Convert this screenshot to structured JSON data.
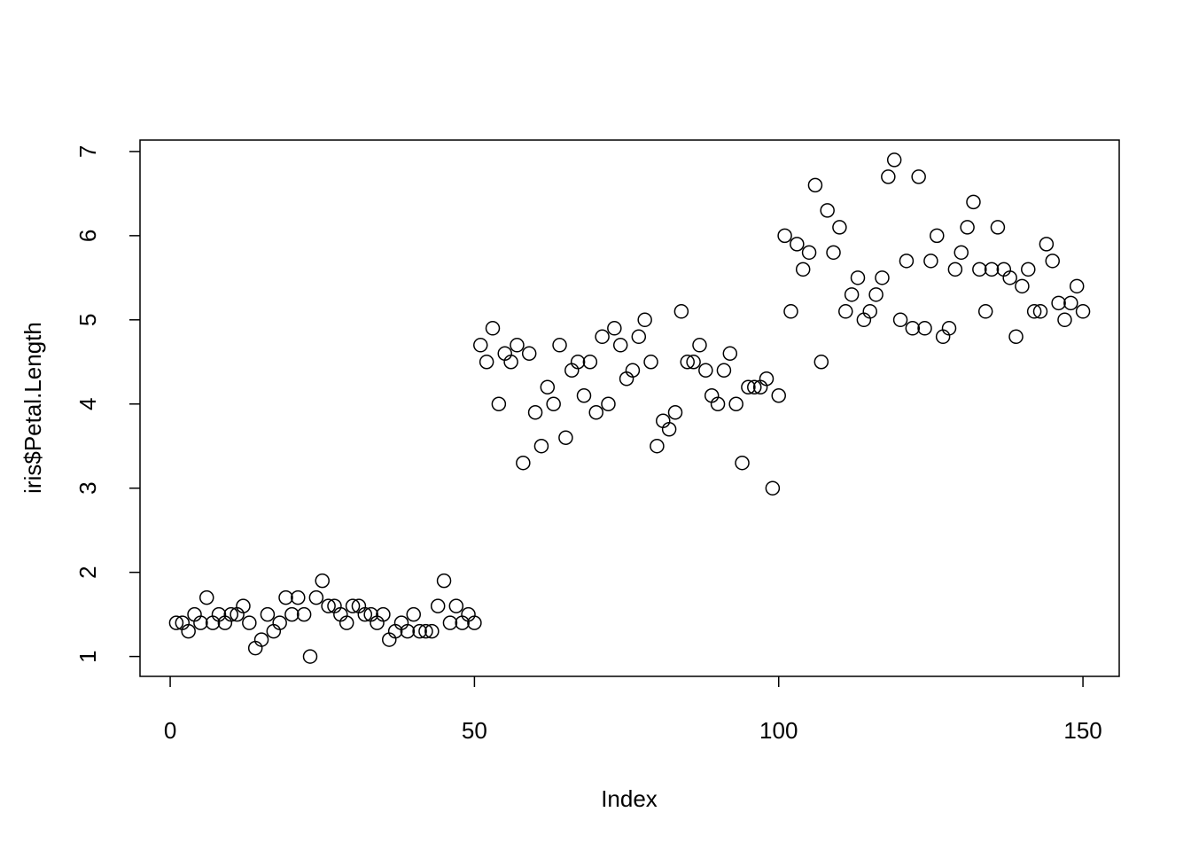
{
  "chart_data": {
    "type": "scatter",
    "xlabel": "Index",
    "ylabel": "iris$Petal.Length",
    "x": [
      1,
      2,
      3,
      4,
      5,
      6,
      7,
      8,
      9,
      10,
      11,
      12,
      13,
      14,
      15,
      16,
      17,
      18,
      19,
      20,
      21,
      22,
      23,
      24,
      25,
      26,
      27,
      28,
      29,
      30,
      31,
      32,
      33,
      34,
      35,
      36,
      37,
      38,
      39,
      40,
      41,
      42,
      43,
      44,
      45,
      46,
      47,
      48,
      49,
      50,
      51,
      52,
      53,
      54,
      55,
      56,
      57,
      58,
      59,
      60,
      61,
      62,
      63,
      64,
      65,
      66,
      67,
      68,
      69,
      70,
      71,
      72,
      73,
      74,
      75,
      76,
      77,
      78,
      79,
      80,
      81,
      82,
      83,
      84,
      85,
      86,
      87,
      88,
      89,
      90,
      91,
      92,
      93,
      94,
      95,
      96,
      97,
      98,
      99,
      100,
      101,
      102,
      103,
      104,
      105,
      106,
      107,
      108,
      109,
      110,
      111,
      112,
      113,
      114,
      115,
      116,
      117,
      118,
      119,
      120,
      121,
      122,
      123,
      124,
      125,
      126,
      127,
      128,
      129,
      130,
      131,
      132,
      133,
      134,
      135,
      136,
      137,
      138,
      139,
      140,
      141,
      142,
      143,
      144,
      145,
      146,
      147,
      148,
      149,
      150
    ],
    "values": [
      1.4,
      1.4,
      1.3,
      1.5,
      1.4,
      1.7,
      1.4,
      1.5,
      1.4,
      1.5,
      1.5,
      1.6,
      1.4,
      1.1,
      1.2,
      1.5,
      1.3,
      1.4,
      1.7,
      1.5,
      1.7,
      1.5,
      1.0,
      1.7,
      1.9,
      1.6,
      1.6,
      1.5,
      1.4,
      1.6,
      1.6,
      1.5,
      1.5,
      1.4,
      1.5,
      1.2,
      1.3,
      1.4,
      1.3,
      1.5,
      1.3,
      1.3,
      1.3,
      1.6,
      1.9,
      1.4,
      1.6,
      1.4,
      1.5,
      1.4,
      4.7,
      4.5,
      4.9,
      4.0,
      4.6,
      4.5,
      4.7,
      3.3,
      4.6,
      3.9,
      3.5,
      4.2,
      4.0,
      4.7,
      3.6,
      4.4,
      4.5,
      4.1,
      4.5,
      3.9,
      4.8,
      4.0,
      4.9,
      4.7,
      4.3,
      4.4,
      4.8,
      5.0,
      4.5,
      3.5,
      3.8,
      3.7,
      3.9,
      5.1,
      4.5,
      4.5,
      4.7,
      4.4,
      4.1,
      4.0,
      4.4,
      4.6,
      4.0,
      3.3,
      4.2,
      4.2,
      4.2,
      4.3,
      3.0,
      4.1,
      6.0,
      5.1,
      5.9,
      5.6,
      5.8,
      6.6,
      4.5,
      6.3,
      5.8,
      6.1,
      5.1,
      5.3,
      5.5,
      5.0,
      5.1,
      5.3,
      5.5,
      6.7,
      6.9,
      5.0,
      5.7,
      4.9,
      6.7,
      4.9,
      5.7,
      6.0,
      4.8,
      4.9,
      5.6,
      5.8,
      6.1,
      6.4,
      5.6,
      5.1,
      5.6,
      6.1,
      5.6,
      5.5,
      4.8,
      5.4,
      5.6,
      5.1,
      5.1,
      5.9,
      5.7,
      5.2,
      5.0,
      5.2,
      5.4,
      5.1
    ],
    "color": "#000000",
    "xlim": [
      -4.96,
      155.96
    ],
    "ylim": [
      0.764,
      7.136
    ],
    "xticks": [
      0,
      50,
      100,
      150
    ],
    "yticks": [
      1,
      2,
      3,
      4,
      5,
      6,
      7
    ]
  }
}
